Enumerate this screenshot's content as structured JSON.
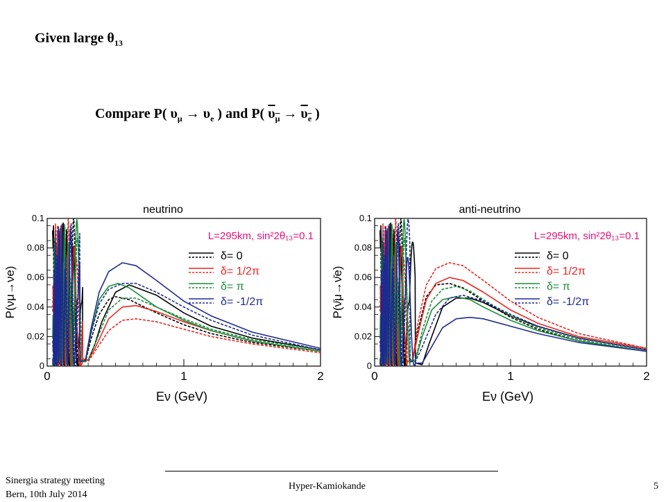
{
  "slide": {
    "heading": "Given large θ",
    "heading_sub": "13",
    "compare": {
      "p1_prefix": "Compare P( υ",
      "p1_sub1": "μ",
      "arrow1": " → υ",
      "p1_sub2": "e",
      "mid": " ) and P( ",
      "p2_nu1": "υ",
      "p2_sub1": "μ",
      "arrow2": " → ",
      "p2_nu2": "υ",
      "p2_sub2": "e",
      "end": " )"
    },
    "footer": {
      "left_line1": "Sinergia strategy meeting",
      "left_line2": "Bern, 10th July 2014",
      "center": "Hyper-Kamiokande",
      "page": "5"
    }
  },
  "colors": {
    "black": "#000000",
    "red": "#e8251f",
    "green": "#1a8c3a",
    "blue": "#1e2a8f",
    "magenta": "#e0127a"
  },
  "chart_data": [
    {
      "type": "line",
      "title": "neutrino",
      "annotation": "L=295km, sin²2θ₁₃=0.1",
      "xlabel": "Eν (GeV)",
      "ylabel": "P(νμ→νe)",
      "xlim": [
        0,
        2
      ],
      "ylim": [
        0,
        0.1
      ],
      "xticks": [
        "0",
        "1",
        "2"
      ],
      "yticks": [
        "0",
        "0.02",
        "0.04",
        "0.06",
        "0.08",
        "0.1"
      ],
      "legend": [
        "δ= 0",
        "δ= 1/2π",
        "δ= π",
        "δ= -1/2π"
      ],
      "legend_placement": "right",
      "series": [
        {
          "name": "δ= 0",
          "color": "black",
          "dash": "solid",
          "x": [
            0.26,
            0.3,
            0.35,
            0.4,
            0.5,
            0.6,
            0.8,
            1.0,
            1.2,
            1.5,
            2.0
          ],
          "y": [
            0.005,
            0.004,
            0.015,
            0.03,
            0.05,
            0.055,
            0.048,
            0.036,
            0.027,
            0.019,
            0.011
          ]
        },
        {
          "name": "δ= 0",
          "color": "black",
          "dash": "dashed",
          "x": [
            0.24,
            0.28,
            0.32,
            0.38,
            0.45,
            0.5,
            0.6,
            0.8,
            1.0,
            1.2,
            1.5,
            2.0
          ],
          "y": [
            0.003,
            0.003,
            0.018,
            0.035,
            0.045,
            0.047,
            0.045,
            0.036,
            0.028,
            0.022,
            0.016,
            0.01
          ]
        },
        {
          "name": "δ= 1/2π",
          "color": "red",
          "dash": "solid",
          "x": [
            0.26,
            0.3,
            0.35,
            0.45,
            0.55,
            0.65,
            0.8,
            1.0,
            1.2,
            1.5,
            2.0
          ],
          "y": [
            0.005,
            0.004,
            0.012,
            0.032,
            0.04,
            0.041,
            0.037,
            0.03,
            0.024,
            0.017,
            0.01
          ]
        },
        {
          "name": "δ= 1/2π",
          "color": "red",
          "dash": "dashed",
          "x": [
            0.26,
            0.3,
            0.35,
            0.45,
            0.55,
            0.65,
            0.8,
            1.0,
            1.2,
            1.5,
            2.0
          ],
          "y": [
            0.004,
            0.003,
            0.01,
            0.024,
            0.031,
            0.032,
            0.03,
            0.025,
            0.02,
            0.015,
            0.009
          ]
        },
        {
          "name": "δ= π",
          "color": "green",
          "dash": "solid",
          "x": [
            0.24,
            0.28,
            0.32,
            0.38,
            0.45,
            0.52,
            0.6,
            0.8,
            1.0,
            1.2,
            1.5,
            2.0
          ],
          "y": [
            0.003,
            0.003,
            0.022,
            0.045,
            0.054,
            0.056,
            0.053,
            0.04,
            0.031,
            0.024,
            0.017,
            0.01
          ]
        },
        {
          "name": "δ= π",
          "color": "green",
          "dash": "dashed",
          "x": [
            0.25,
            0.3,
            0.35,
            0.45,
            0.55,
            0.65,
            0.8,
            1.0,
            1.2,
            1.5,
            2.0
          ],
          "y": [
            0.004,
            0.004,
            0.015,
            0.038,
            0.046,
            0.046,
            0.04,
            0.032,
            0.025,
            0.018,
            0.011
          ]
        },
        {
          "name": "δ= -1/2π",
          "color": "blue",
          "dash": "solid",
          "x": [
            0.24,
            0.28,
            0.32,
            0.38,
            0.45,
            0.55,
            0.65,
            0.8,
            1.0,
            1.2,
            1.5,
            2.0
          ],
          "y": [
            0.003,
            0.004,
            0.025,
            0.05,
            0.064,
            0.07,
            0.068,
            0.058,
            0.044,
            0.034,
            0.023,
            0.012
          ]
        },
        {
          "name": "δ= -1/2π",
          "color": "blue",
          "dash": "dashed",
          "x": [
            0.24,
            0.28,
            0.32,
            0.38,
            0.45,
            0.55,
            0.65,
            0.8,
            1.0,
            1.2,
            1.5,
            2.0
          ],
          "y": [
            0.003,
            0.004,
            0.022,
            0.042,
            0.052,
            0.056,
            0.056,
            0.05,
            0.04,
            0.031,
            0.021,
            0.011
          ]
        }
      ]
    },
    {
      "type": "line",
      "title": "anti-neutrino",
      "annotation": "L=295km, sin²2θ₁₃=0.1",
      "xlabel": "Eν (GeV)",
      "ylabel": "P(ν̄μ→ν̄e)",
      "xlim": [
        0,
        2
      ],
      "ylim": [
        0,
        0.1
      ],
      "xticks": [
        "0",
        "1",
        "2"
      ],
      "yticks": [
        "0",
        "0.02",
        "0.04",
        "0.06",
        "0.08",
        "0.1"
      ],
      "legend": [
        "δ= 0",
        "δ= 1/2π",
        "δ= π",
        "δ= -1/2π"
      ],
      "legend_placement": "right",
      "series": [
        {
          "name": "δ= 0",
          "color": "black",
          "dash": "solid",
          "x": [
            0.3,
            0.35,
            0.4,
            0.5,
            0.6,
            0.7,
            0.8,
            1.0,
            1.2,
            1.5,
            2.0
          ],
          "y": [
            0.002,
            0.001,
            0.015,
            0.04,
            0.046,
            0.046,
            0.043,
            0.034,
            0.027,
            0.019,
            0.011
          ]
        },
        {
          "name": "δ= 0",
          "color": "black",
          "dash": "dashed",
          "x": [
            0.24,
            0.28,
            0.32,
            0.38,
            0.45,
            0.55,
            0.65,
            0.8,
            1.0,
            1.2,
            1.5,
            2.0
          ],
          "y": [
            0.003,
            0.004,
            0.025,
            0.047,
            0.055,
            0.056,
            0.053,
            0.044,
            0.033,
            0.025,
            0.017,
            0.01
          ]
        },
        {
          "name": "δ= 1/2π",
          "color": "red",
          "dash": "solid",
          "x": [
            0.24,
            0.28,
            0.32,
            0.38,
            0.45,
            0.55,
            0.65,
            0.8,
            1.0,
            1.2,
            1.5,
            2.0
          ],
          "y": [
            0.003,
            0.004,
            0.022,
            0.045,
            0.056,
            0.06,
            0.058,
            0.05,
            0.038,
            0.029,
            0.02,
            0.012
          ]
        },
        {
          "name": "δ= 1/2π",
          "color": "red",
          "dash": "dashed",
          "x": [
            0.24,
            0.28,
            0.32,
            0.38,
            0.45,
            0.55,
            0.65,
            0.8,
            1.0,
            1.2,
            1.5,
            2.0
          ],
          "y": [
            0.003,
            0.005,
            0.03,
            0.055,
            0.066,
            0.07,
            0.068,
            0.058,
            0.044,
            0.033,
            0.022,
            0.012
          ]
        },
        {
          "name": "δ= π",
          "color": "green",
          "dash": "solid",
          "x": [
            0.26,
            0.3,
            0.35,
            0.42,
            0.5,
            0.6,
            0.7,
            0.8,
            1.0,
            1.2,
            1.5,
            2.0
          ],
          "y": [
            0.004,
            0.004,
            0.02,
            0.038,
            0.045,
            0.047,
            0.045,
            0.04,
            0.031,
            0.024,
            0.017,
            0.01
          ]
        },
        {
          "name": "δ= π",
          "color": "green",
          "dash": "dashed",
          "x": [
            0.26,
            0.3,
            0.35,
            0.42,
            0.5,
            0.6,
            0.7,
            0.8,
            1.0,
            1.2,
            1.5,
            2.0
          ],
          "y": [
            0.004,
            0.004,
            0.024,
            0.044,
            0.052,
            0.054,
            0.051,
            0.045,
            0.034,
            0.026,
            0.018,
            0.01
          ]
        },
        {
          "name": "δ= -1/2π",
          "color": "blue",
          "dash": "solid",
          "x": [
            0.3,
            0.35,
            0.4,
            0.5,
            0.6,
            0.7,
            0.8,
            1.0,
            1.2,
            1.5,
            2.0
          ],
          "y": [
            0.002,
            0.002,
            0.01,
            0.026,
            0.032,
            0.033,
            0.032,
            0.027,
            0.022,
            0.016,
            0.01
          ]
        },
        {
          "name": "δ= -1/2π",
          "color": "blue",
          "dash": "dashed",
          "x": [
            0.26,
            0.3,
            0.35,
            0.45,
            0.55,
            0.65,
            0.8,
            1.0,
            1.2,
            1.5,
            2.0
          ],
          "y": [
            0.003,
            0.003,
            0.013,
            0.035,
            0.046,
            0.048,
            0.044,
            0.035,
            0.027,
            0.019,
            0.011
          ]
        }
      ]
    }
  ]
}
